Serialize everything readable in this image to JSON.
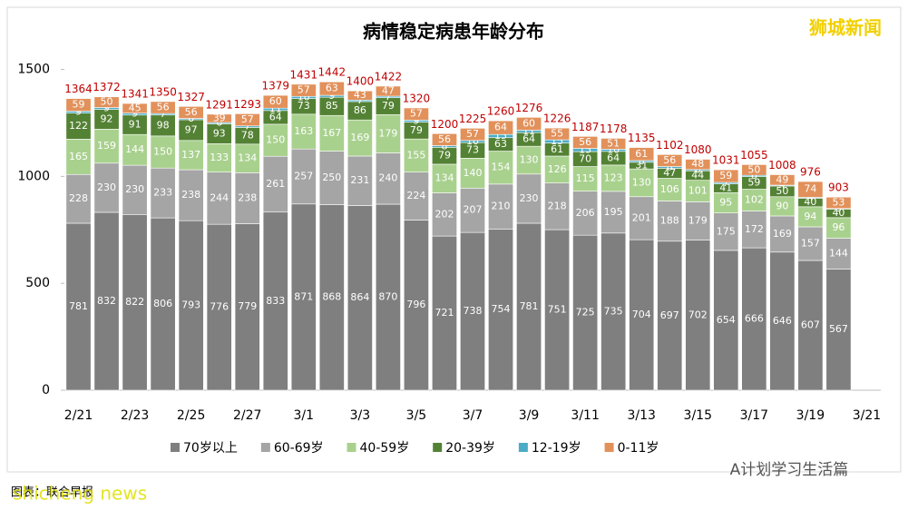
{
  "chart_data": {
    "type": "stacked-bar",
    "title": "病情稳定病患年龄分布",
    "categories": [
      "2/21",
      null,
      "2/23",
      null,
      "2/25",
      null,
      "2/27",
      null,
      "3/1",
      null,
      "3/3",
      null,
      "3/5",
      null,
      "3/7",
      null,
      "3/9",
      null,
      "3/11",
      null,
      "3/13",
      null,
      "3/15",
      null,
      "3/17",
      null,
      "3/19",
      null,
      "3/21"
    ],
    "series": [
      {
        "name": "70岁以上",
        "color": "#7f7f7f",
        "values": [
          781,
          832,
          822,
          806,
          793,
          776,
          779,
          833,
          871,
          868,
          864,
          870,
          796,
          721,
          738,
          754,
          781,
          751,
          725,
          735,
          704,
          697,
          702,
          654,
          666,
          646,
          607,
          567,
          null
        ]
      },
      {
        "name": "60-69岁",
        "color": "#a5a5a5",
        "values": [
          228,
          230,
          230,
          233,
          238,
          244,
          238,
          261,
          257,
          250,
          231,
          240,
          224,
          202,
          207,
          210,
          230,
          218,
          206,
          195,
          201,
          188,
          179,
          175,
          172,
          169,
          157,
          144,
          null
        ]
      },
      {
        "name": "40-59岁",
        "color": "#a9d18e",
        "values": [
          165,
          159,
          144,
          150,
          137,
          133,
          134,
          150,
          163,
          167,
          169,
          179,
          155,
          134,
          140,
          154,
          130,
          126,
          115,
          123,
          130,
          106,
          101,
          95,
          102,
          90,
          94,
          96,
          null
        ]
      },
      {
        "name": "20-39岁",
        "color": "#548235",
        "values": [
          122,
          92,
          91,
          98,
          97,
          93,
          78,
          64,
          73,
          85,
          86,
          79,
          79,
          79,
          73,
          63,
          64,
          61,
          70,
          64,
          31,
          47,
          44,
          41,
          59,
          50,
          40,
          40,
          null
        ]
      },
      {
        "name": "12-19岁",
        "color": "#4bacc6",
        "values": [
          9,
          9,
          9,
          7,
          6,
          6,
          7,
          11,
          10,
          9,
          7,
          7,
          9,
          8,
          10,
          15,
          11,
          15,
          15,
          10,
          8,
          8,
          6,
          7,
          6,
          4,
          4,
          3,
          null
        ]
      },
      {
        "name": "0-11岁",
        "color": "#e2915b",
        "values": [
          59,
          50,
          45,
          56,
          56,
          39,
          57,
          60,
          57,
          63,
          43,
          47,
          57,
          56,
          57,
          64,
          60,
          55,
          56,
          51,
          61,
          56,
          48,
          59,
          50,
          49,
          74,
          53,
          null
        ]
      }
    ],
    "totals": [
      1364,
      1372,
      1341,
      1350,
      1327,
      1291,
      1293,
      1379,
      1431,
      1442,
      1400,
      1422,
      1320,
      1200,
      1225,
      1260,
      1276,
      1226,
      1187,
      1178,
      1135,
      1102,
      1080,
      1031,
      1055,
      1008,
      976,
      903,
      null
    ],
    "ylim": [
      0,
      1600
    ],
    "yticks": [
      0,
      500,
      1000,
      1500
    ],
    "grid": false,
    "legend": "bottom"
  },
  "watermark": "狮城新闻",
  "source": "图表：联合早报",
  "footer_watermark": "shicheng news",
  "account": "A计划学习生活篇"
}
